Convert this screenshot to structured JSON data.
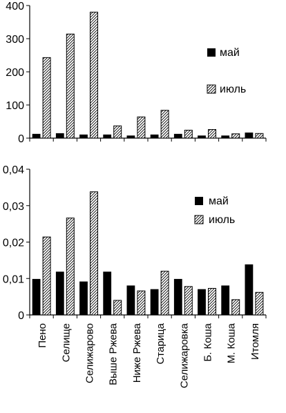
{
  "colors": {
    "may": "#000000",
    "july_fill": "#ffffff",
    "july_hatch": "#000000",
    "axis": "#000000"
  },
  "chart_data": [
    {
      "type": "bar",
      "categories": [
        "Пено",
        "Селище",
        "Селижарово",
        "Выше Ржева",
        "Ниже Ржева",
        "Старица",
        "Селижаровка",
        "Б. Коша",
        "М. Коша",
        "Итомля"
      ],
      "series": [
        {
          "name": "май",
          "values": [
            12,
            14,
            10,
            10,
            7,
            10,
            12,
            7,
            7,
            16
          ]
        },
        {
          "name": "июль",
          "values": [
            243,
            314,
            380,
            37,
            64,
            84,
            24,
            26,
            13,
            14
          ]
        }
      ],
      "ylim": [
        0,
        400
      ],
      "yticks": [
        "0",
        "100",
        "200",
        "300",
        "400"
      ],
      "grid": false,
      "legend": "right",
      "title": "",
      "xlabel": "",
      "ylabel": ""
    },
    {
      "type": "bar",
      "categories": [
        "Пено",
        "Селище",
        "Селижарово",
        "Выше Ржева",
        "Ниже Ржева",
        "Старица",
        "Селижаровка",
        "Б. Коша",
        "М. Коша",
        "Итомля"
      ],
      "series": [
        {
          "name": "май",
          "values": [
            0.0098,
            0.0118,
            0.0091,
            0.0118,
            0.008,
            0.007,
            0.0098,
            0.007,
            0.008,
            0.0138
          ]
        },
        {
          "name": "июль",
          "values": [
            0.0214,
            0.0266,
            0.0338,
            0.004,
            0.0066,
            0.012,
            0.0078,
            0.0073,
            0.0042,
            0.0062
          ]
        }
      ],
      "ylim": [
        0,
        0.04
      ],
      "yticks": [
        "0",
        "0,01",
        "0,02",
        "0,03",
        "0,04"
      ],
      "grid": false,
      "legend": "right",
      "title": "",
      "xlabel": "",
      "ylabel": ""
    }
  ]
}
